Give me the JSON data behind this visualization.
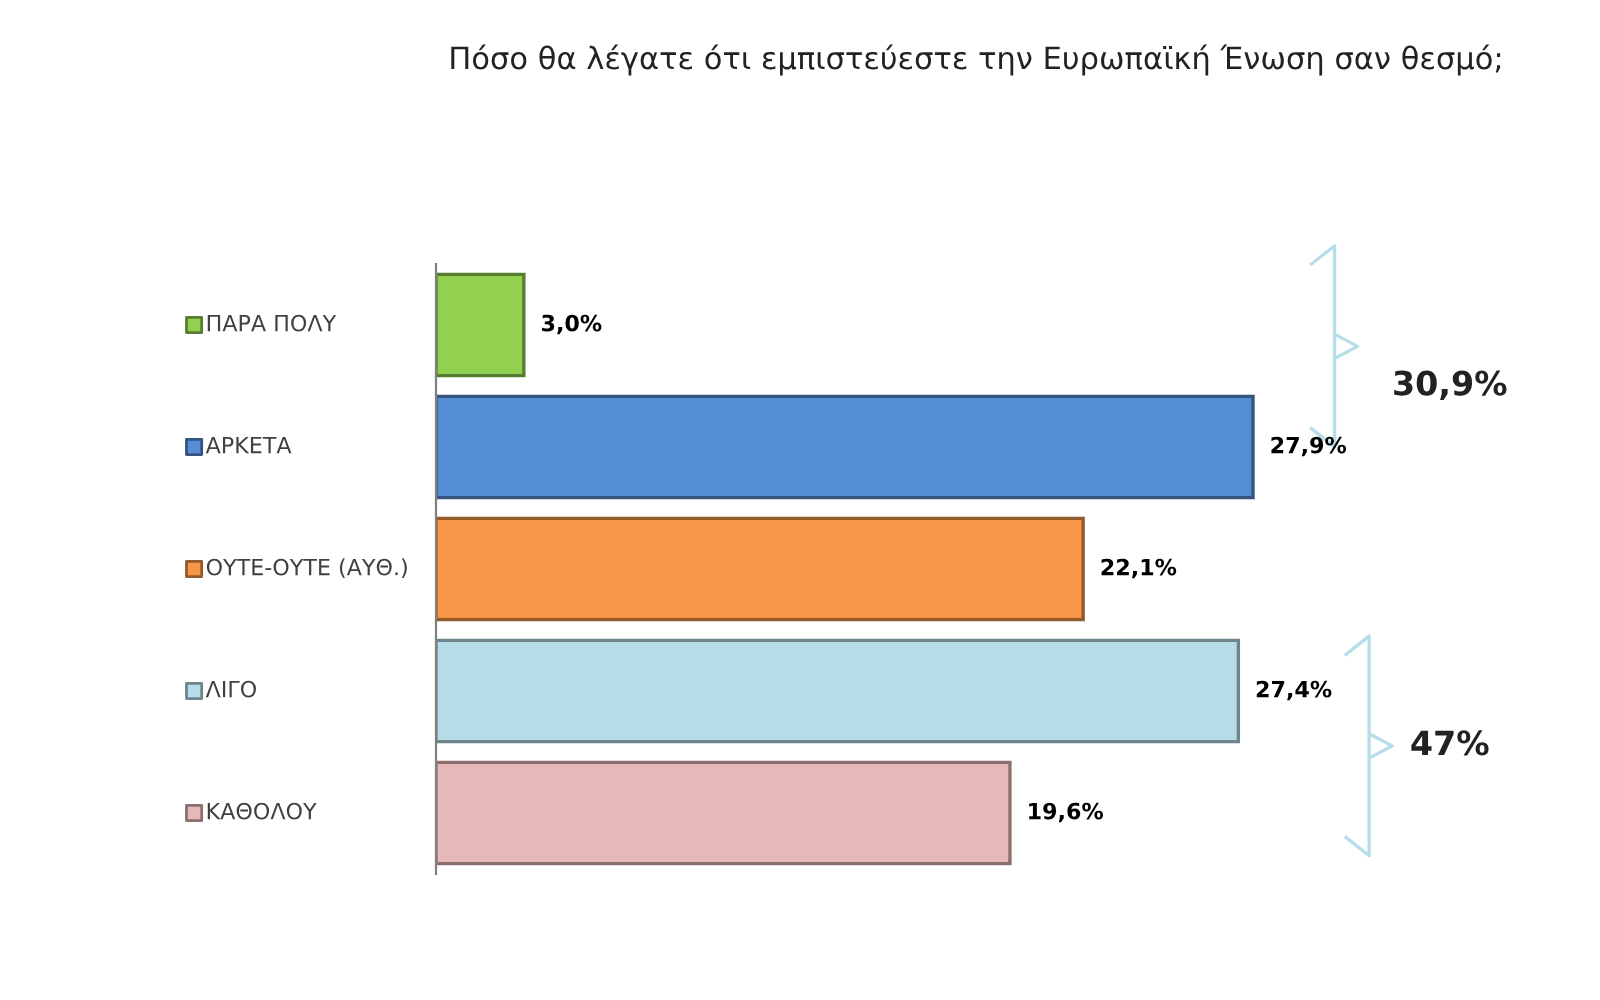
{
  "chart_data": {
    "type": "bar",
    "orientation": "horizontal",
    "title": "Πόσο θα λέγατε ότι εμπιστεύεστε την Ευρωπαϊκή Ένωση σαν θεσμό;",
    "categories": [
      "ΠΑΡΑ ΠΟΛΥ",
      "ΑΡΚΕΤΑ",
      "ΟΥΤΕ-ΟΥΤΕ (ΑΥΘ.)",
      "ΛΙΓΟ",
      "ΚΑΘΟΛΟΥ"
    ],
    "values": [
      3.0,
      27.9,
      22.1,
      27.4,
      19.6
    ],
    "colors": [
      "#92d050",
      "#558ed5",
      "#f79646",
      "#b7dee8",
      "#e6b9b8"
    ],
    "value_labels": [
      "3,0%",
      "27,9%",
      "22,1%",
      "27,4%",
      "19,6%"
    ],
    "annotations": [
      "30,9%",
      "47%"
    ],
    "grid": false,
    "legend": false
  }
}
